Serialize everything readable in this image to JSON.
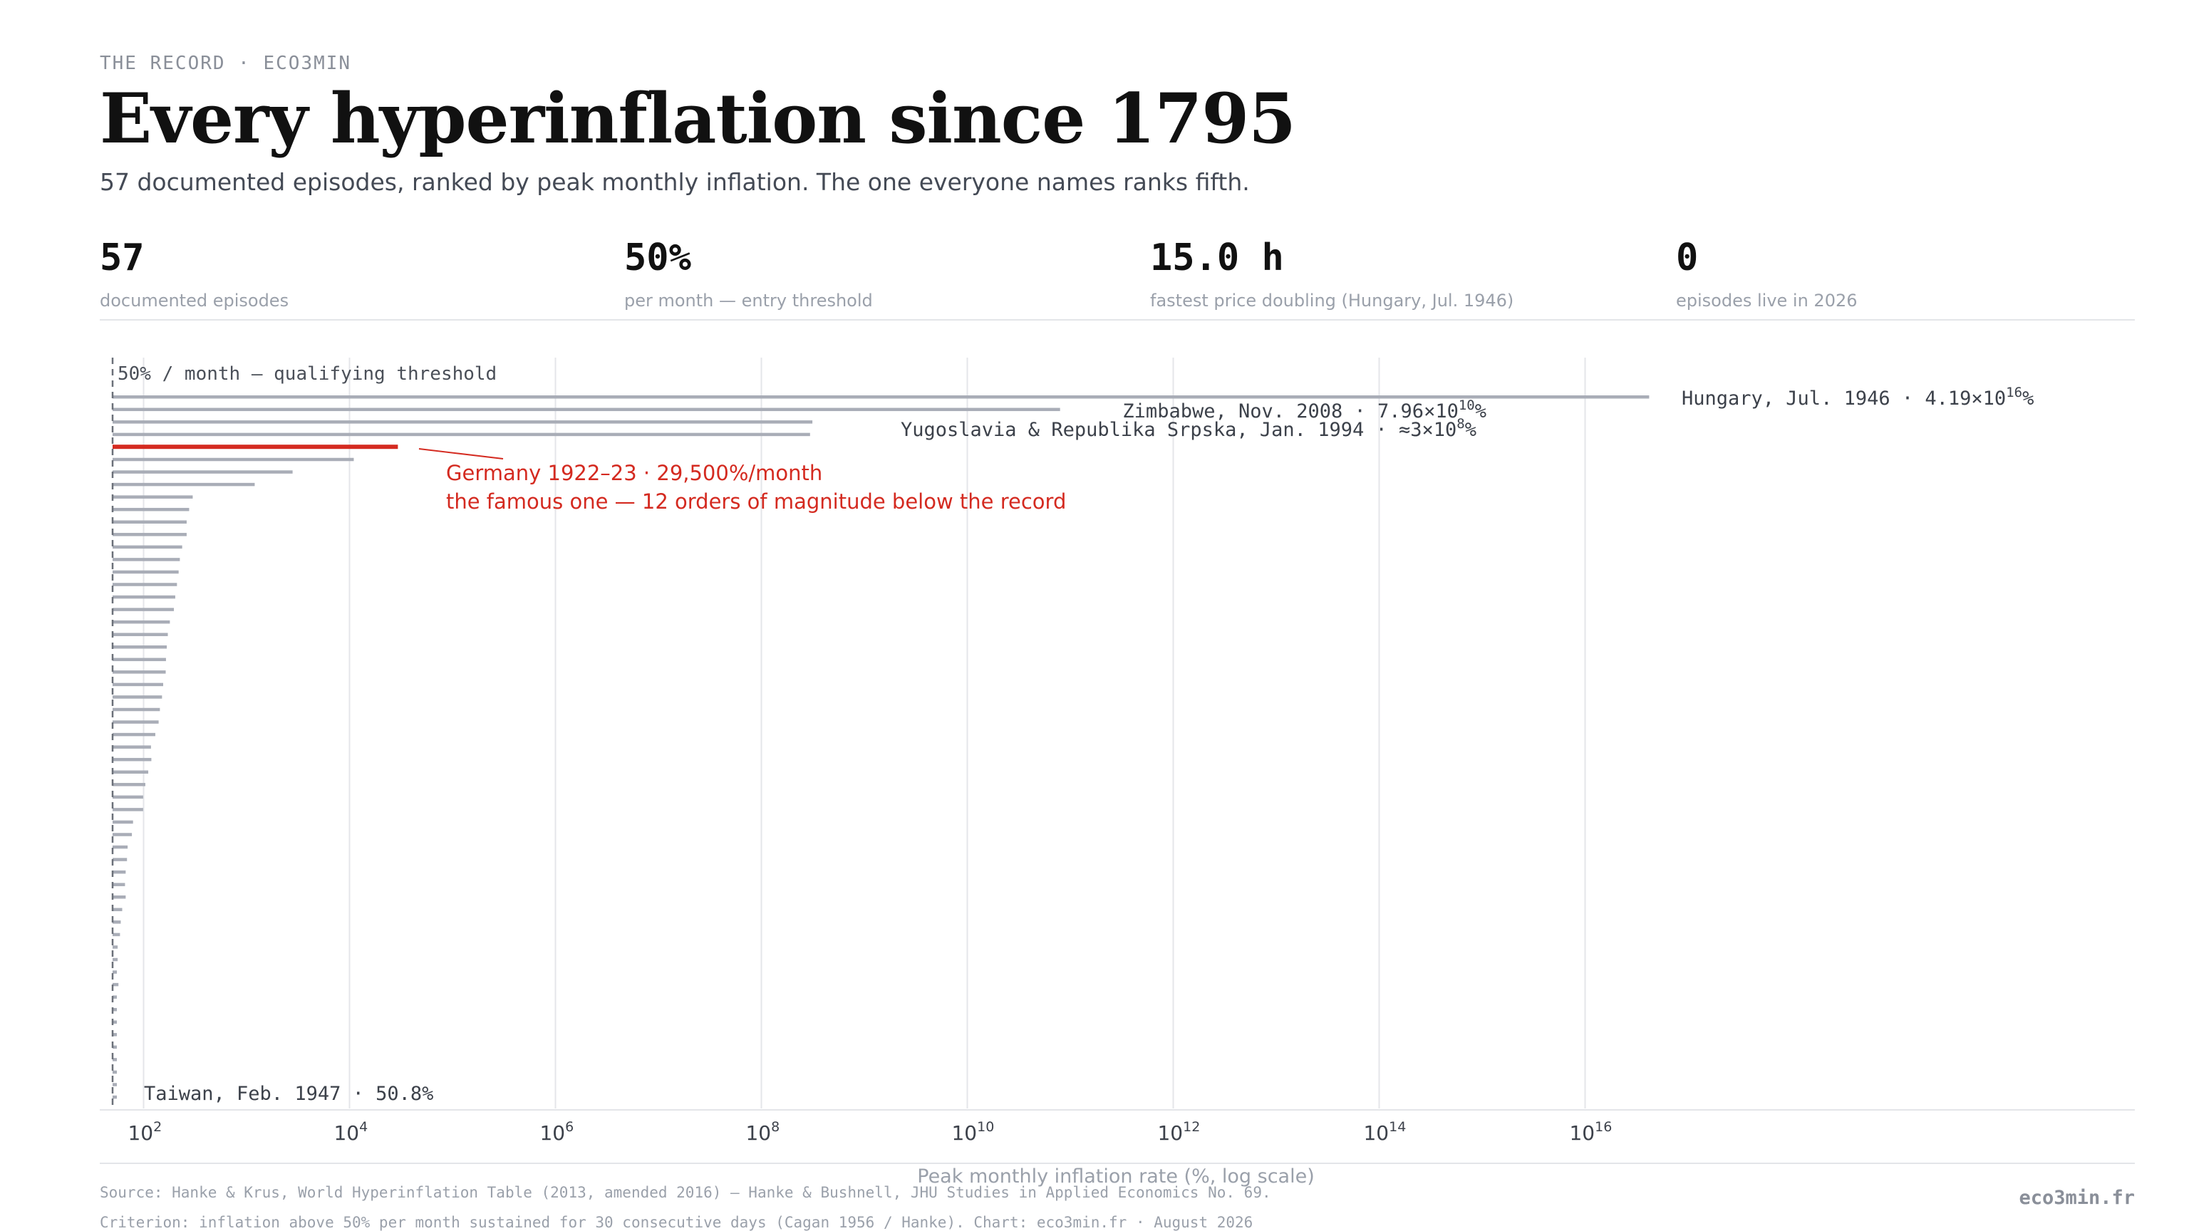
{
  "header": {
    "kicker": "THE RECORD  ·  ECO3MIN",
    "title": "Every hyperinflation since 1795",
    "subtitle": "57 documented episodes, ranked by peak monthly inflation. The one everyone names ranks fifth."
  },
  "stats": [
    {
      "value": "57",
      "label": "documented episodes"
    },
    {
      "value": "50%",
      "label": "per month — entry threshold"
    },
    {
      "value": "15.0 h",
      "label": "fastest price doubling (Hungary, Jul. 1946)"
    },
    {
      "value": "0",
      "label": "episodes live in 2026"
    }
  ],
  "chart_data": {
    "type": "bar",
    "orientation": "horizontal",
    "x_scale": "log",
    "xlabel": "Peak monthly inflation rate (%, log scale)",
    "xlim": [
      50,
      1e+17
    ],
    "xticks": [
      {
        "base": "10",
        "exp": "2"
      },
      {
        "base": "10",
        "exp": "4"
      },
      {
        "base": "10",
        "exp": "6"
      },
      {
        "base": "10",
        "exp": "8"
      },
      {
        "base": "10",
        "exp": "10"
      },
      {
        "base": "10",
        "exp": "12"
      },
      {
        "base": "10",
        "exp": "14"
      },
      {
        "base": "10",
        "exp": "16"
      }
    ],
    "grid": true,
    "threshold": {
      "value": 50,
      "label": "50% / month — qualifying threshold"
    },
    "values": [
      4.19e+16,
      79600000000.0,
      313000000.0,
      297000000.0,
      29500,
      11000,
      2800,
      1200,
      300,
      277,
      262,
      262,
      237,
      225,
      219,
      211,
      203,
      197,
      180,
      172,
      168,
      165,
      164,
      155,
      151,
      144,
      140,
      130,
      118,
      119,
      111,
      104,
      99,
      99,
      79,
      77,
      70,
      69,
      67,
      66,
      67,
      62,
      60,
      59,
      56,
      56,
      55,
      57,
      55,
      54,
      53,
      52,
      52,
      52,
      51,
      51,
      50.8
    ],
    "highlight_index": 4,
    "labels": {
      "hungary": {
        "name": "Hungary, Jul. 1946 · 4.19",
        "times": "×",
        "base": "10",
        "exp": "16",
        "suffix": "%"
      },
      "zimbabwe": {
        "name": "Zimbabwe, Nov. 2008 · 7.96",
        "times": "×",
        "base": "10",
        "exp": "10",
        "suffix": "%"
      },
      "yugoslavia": {
        "name": "Yugoslavia & Republika Srpska, Jan. 1994 · ≈3",
        "times": "×",
        "base": "10",
        "exp": "8",
        "suffix": "%"
      },
      "taiwan": "Taiwan, Feb. 1947 · 50.8%"
    },
    "annotation": {
      "line1": "Germany 1922–23 · 29,500%/month",
      "line2": "the famous one — 12 orders of magnitude below the record"
    },
    "colors": {
      "bar": "#a9adb7",
      "highlight": "#d42a20",
      "grid": "#e4e6ea",
      "label": "#3c414a",
      "annotation": "#d42a20"
    }
  },
  "footer": {
    "source": "Source: Hanke & Krus, World Hyperinflation Table (2013, amended 2016) — Hanke & Bushnell, JHU Studies in Applied Economics No. 69.",
    "criterion": "Criterion: inflation above 50% per month sustained for 30 consecutive days (Cagan 1956 / Hanke).  Chart: eco3min.fr  ·  August 2026",
    "brand": "eco3min.fr"
  }
}
